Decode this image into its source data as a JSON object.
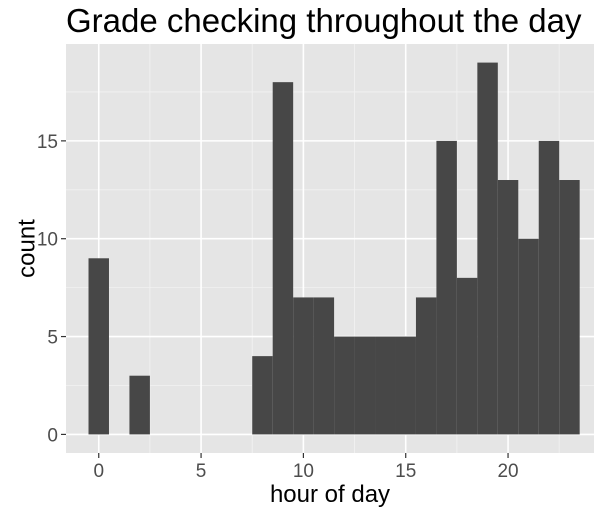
{
  "chart_data": {
    "type": "bar",
    "title": "Grade checking throughout the day",
    "xlabel": "hour of day",
    "ylabel": "count",
    "x": [
      0,
      2,
      8,
      9,
      10,
      11,
      12,
      13,
      14,
      15,
      16,
      17,
      18,
      19,
      20,
      21,
      22,
      23
    ],
    "values": [
      9,
      3,
      4,
      18,
      7,
      7,
      5,
      5,
      5,
      5,
      7,
      15,
      8,
      19,
      13,
      10,
      15,
      13
    ],
    "xlim": [
      -1.6,
      24.2
    ],
    "ylim": [
      -0.95,
      19.95
    ],
    "xticks": [
      0,
      5,
      10,
      15,
      20
    ],
    "yticks": [
      0,
      5,
      10,
      15
    ],
    "bar_color": "#474747",
    "panel_bg": "#e5e5e5",
    "grid": true,
    "legend": "none"
  }
}
